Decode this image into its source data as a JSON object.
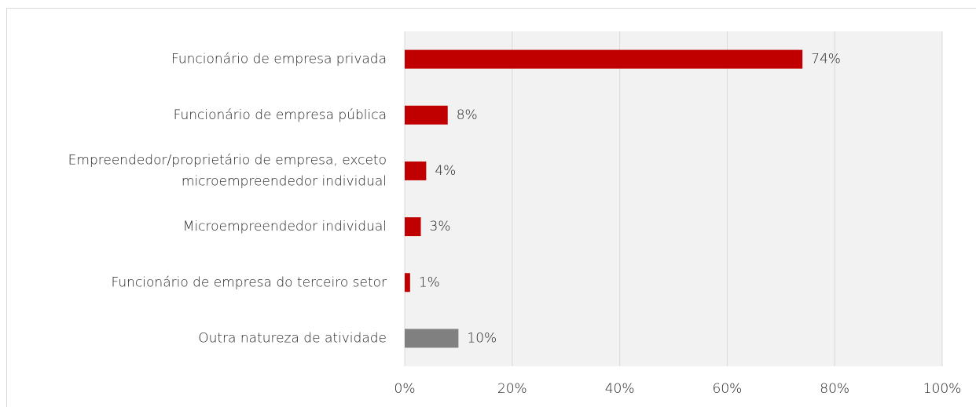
{
  "chart_data": {
    "type": "bar",
    "orientation": "horizontal",
    "categories": [
      "Funcionário de empresa privada",
      "Funcionário de empresa pública",
      [
        "Empreendedor/proprietário de empresa, exceto",
        "microempreendedor individual"
      ],
      "Microempreendedor individual",
      "Funcionário de empresa do terceiro setor",
      "Outra natureza de atividade"
    ],
    "values": [
      74,
      8,
      4,
      3,
      1,
      10
    ],
    "value_labels": [
      "74%",
      "8%",
      "4%",
      "3%",
      "1%",
      "10%"
    ],
    "colors": [
      "#c00000",
      "#c00000",
      "#c00000",
      "#c00000",
      "#c00000",
      "#808080"
    ],
    "xlim": [
      0,
      100
    ],
    "xticks": [
      {
        "value": 0,
        "label": "0%"
      },
      {
        "value": 20,
        "label": "20%"
      },
      {
        "value": 40,
        "label": "40%"
      },
      {
        "value": 60,
        "label": "60%"
      },
      {
        "value": 80,
        "label": "80%"
      },
      {
        "value": 100,
        "label": "100%"
      }
    ],
    "grid": true
  }
}
